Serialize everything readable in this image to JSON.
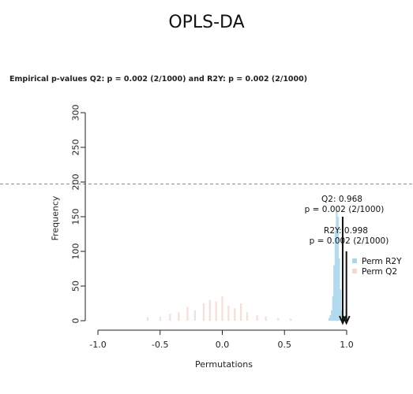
{
  "chart_data": {
    "type": "bar",
    "title": "OPLS-DA",
    "subtitle": "Empirical p-values Q2: p = 0.002 (2/1000) and R2Y: p = 0.002 (2/1000)",
    "xlabel": "Permutations",
    "ylabel": "Frequency",
    "xlim": [
      -1.0,
      1.0
    ],
    "ylim": [
      0,
      300
    ],
    "x_ticks": [
      "-1.0",
      "-0.5",
      "0.0",
      "0.5",
      "1.0"
    ],
    "x_tick_values": [
      -1.0,
      -0.5,
      0.0,
      0.5,
      1.0
    ],
    "y_ticks": [
      "0",
      "50",
      "100",
      "150",
      "200",
      "250",
      "300"
    ],
    "y_tick_values": [
      0,
      50,
      100,
      150,
      200,
      250,
      300
    ],
    "reference_line_y": 197,
    "series": [
      {
        "name": "Perm R2Y",
        "color": "#a9d6ec",
        "bins": [
          {
            "x": 0.86,
            "y": 4
          },
          {
            "x": 0.87,
            "y": 8
          },
          {
            "x": 0.88,
            "y": 15
          },
          {
            "x": 0.89,
            "y": 35
          },
          {
            "x": 0.9,
            "y": 80
          },
          {
            "x": 0.91,
            "y": 130
          },
          {
            "x": 0.92,
            "y": 160
          },
          {
            "x": 0.93,
            "y": 150
          },
          {
            "x": 0.94,
            "y": 90
          },
          {
            "x": 0.95,
            "y": 45
          },
          {
            "x": 0.96,
            "y": 15
          },
          {
            "x": 0.97,
            "y": 5
          }
        ]
      },
      {
        "name": "Perm Q2",
        "color": "#f6d8cf",
        "bins": [
          {
            "x": -0.6,
            "y": 5
          },
          {
            "x": -0.5,
            "y": 6
          },
          {
            "x": -0.42,
            "y": 10
          },
          {
            "x": -0.35,
            "y": 12
          },
          {
            "x": -0.28,
            "y": 20
          },
          {
            "x": -0.22,
            "y": 15
          },
          {
            "x": -0.15,
            "y": 25
          },
          {
            "x": -0.1,
            "y": 30
          },
          {
            "x": -0.05,
            "y": 28
          },
          {
            "x": 0.0,
            "y": 35
          },
          {
            "x": 0.05,
            "y": 22
          },
          {
            "x": 0.1,
            "y": 18
          },
          {
            "x": 0.15,
            "y": 25
          },
          {
            "x": 0.2,
            "y": 12
          },
          {
            "x": 0.28,
            "y": 8
          },
          {
            "x": 0.35,
            "y": 6
          },
          {
            "x": 0.45,
            "y": 4
          },
          {
            "x": 0.55,
            "y": 3
          }
        ]
      }
    ],
    "annotations": [
      {
        "line1": "Q2: 0.968",
        "line2": "p = 0.002 (2/1000)",
        "arrow_x": 0.968,
        "arrow_top_y": 150
      },
      {
        "line1": "R2Y: 0.998",
        "line2": "p = 0.002 (2/1000)",
        "arrow_x": 0.998,
        "arrow_top_y": 100
      }
    ],
    "legend": {
      "position": "right",
      "entries": [
        {
          "label": "Perm R2Y",
          "color": "#a9d6ec"
        },
        {
          "label": "Perm Q2",
          "color": "#f6d8cf"
        }
      ]
    },
    "grid": false
  }
}
